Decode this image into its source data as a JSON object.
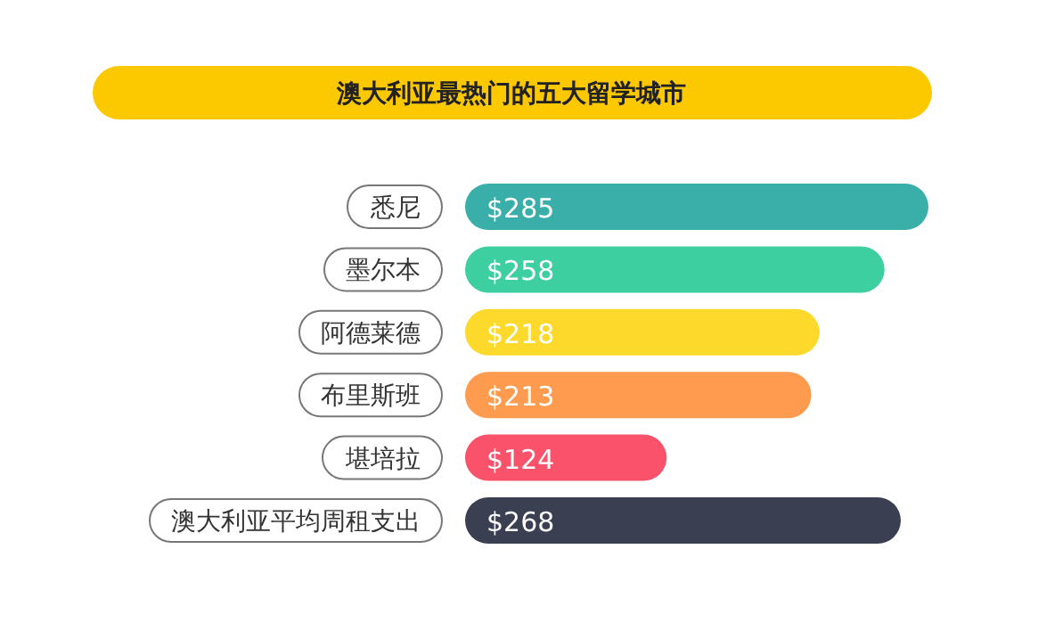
{
  "chart_data": {
    "type": "bar",
    "orientation": "horizontal",
    "title": "澳大利亚最热门的五大留学城市",
    "categories": [
      "悉尼",
      "墨尔本",
      "阿德莱德",
      "布里斯班",
      "堪培拉",
      "澳大利亚平均周租支出"
    ],
    "values": [
      285,
      258,
      218,
      213,
      124,
      268
    ],
    "colors": [
      "#3aafa9",
      "#3ecfa0",
      "#fcd92a",
      "#ff9b4f",
      "#f9526a",
      "#3a3f51"
    ],
    "value_labels": [
      "$285",
      "$258",
      "$218",
      "$213",
      "$124",
      "$268"
    ]
  }
}
